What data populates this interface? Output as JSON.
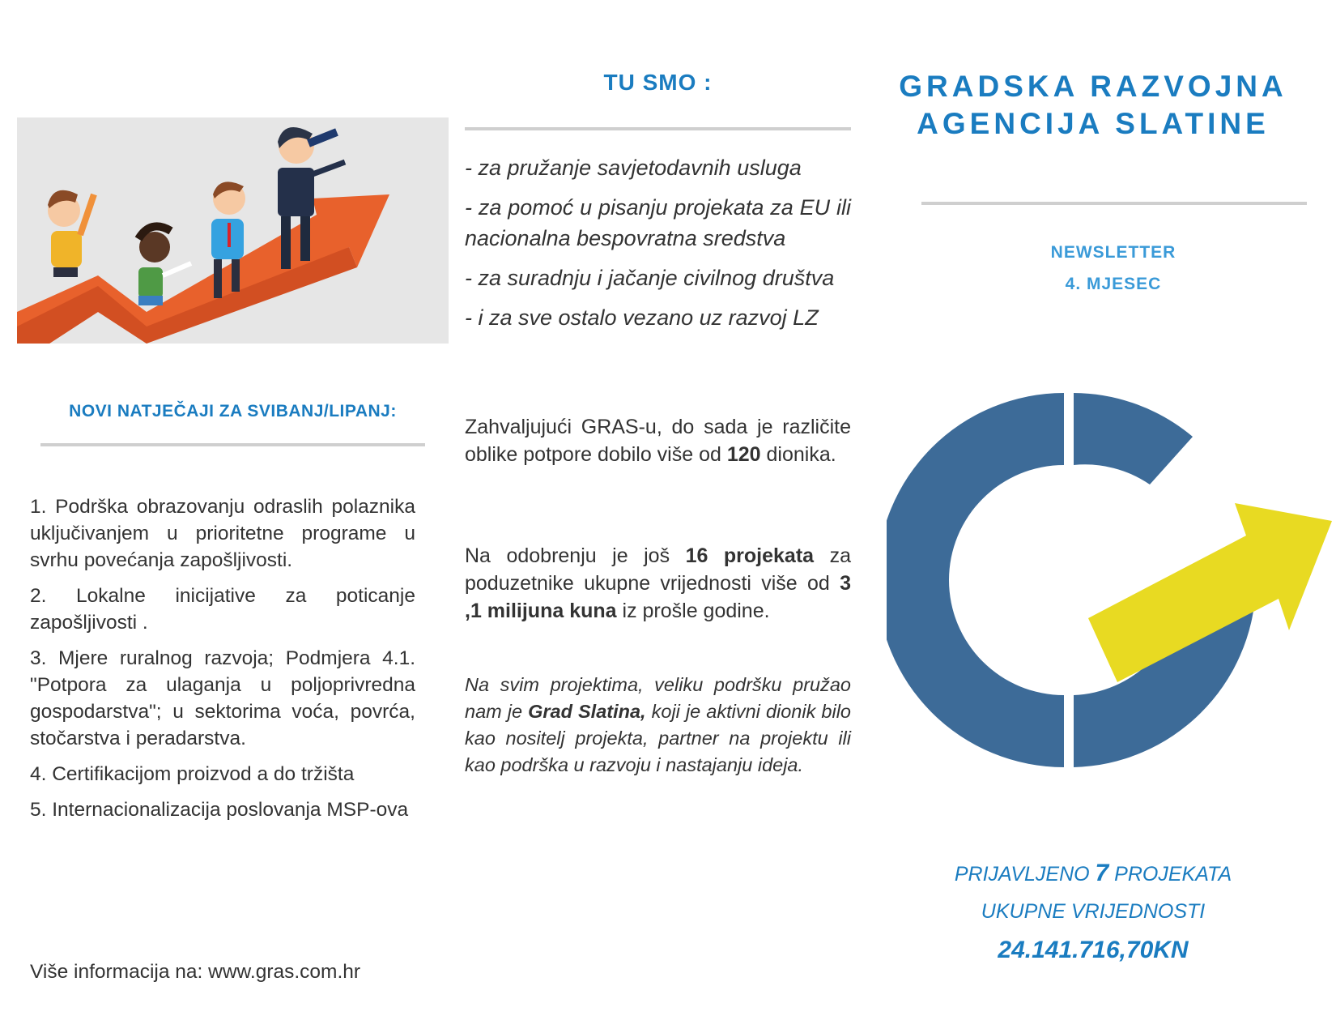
{
  "left": {
    "heading": "NOVI NATJEČAJI ZA SVIBANJ/LIPANJ:",
    "calls": [
      "1. Podrška obrazovanju odraslih polaznika uključivanjem u prioritetne programe u svrhu povećanja zapošljivosti.",
      "2. Lokalne inicijative za poticanje zapošljivosti .",
      "3. Mjere ruralnog razvoja; Podmjera 4.1. \"Potpora za ulaganja u poljoprivredna gospodarstva\"; u sektorima voća, povrća, stočarstva i peradarstva.",
      "4. Certifikacijom proizvod a do tržišta",
      "5. Internacionalizacija poslovanja MSP-ova"
    ],
    "footer": "Više informacija na:  www.gras.com.hr"
  },
  "middle": {
    "heading": "TU SMO :",
    "services": [
      "- za pružanje savjetodavnih usluga",
      "- za pomoć u pisanju  projekata za EU ili nacionalna bespovratna sredstva",
      "- za suradnju i jačanje civilnog društva",
      "- i za sve ostalo vezano uz razvoj LZ"
    ],
    "para1": {
      "before": "Zahvaljujući GRAS-u, do sada je različite oblike potpore dobilo više od ",
      "bold": "120",
      "after": " dionika."
    },
    "para2": {
      "before": "Na odobrenju je još ",
      "bold1": "16 projekata",
      "middle": " za poduzetnike ukupne vrijednosti više od ",
      "bold2": "3 ,1 milijuna kuna",
      "after": " iz prošle godine."
    },
    "para3": {
      "before": "Na svim projektima, veliku podršku pružao nam je ",
      "bold": "Grad Slatina,",
      "after": " koji je aktivni dionik bilo kao nositelj projekta, partner na projektu ili kao podrška u razvoju i nastajanju ideja."
    }
  },
  "right": {
    "title_line1": "GRADSKA RAZVOJNA",
    "title_line2": "AGENCIJA SLATINE",
    "newsletter": "NEWSLETTER",
    "issue": "4. MJESEC",
    "summary": {
      "prefix": "PRIJAVLJENO ",
      "count": "7",
      "suffix": " PROJEKATA",
      "line2": "UKUPNE VRIJEDNOSTI",
      "total": "24.141.716,70KN"
    }
  },
  "colors": {
    "heading_blue": "#1a7cc0",
    "newsletter_blue": "#3a9ad8",
    "logo_blue": "#3d6b98",
    "logo_yellow": "#e8da22",
    "illustration_orange": "#e8612c"
  }
}
